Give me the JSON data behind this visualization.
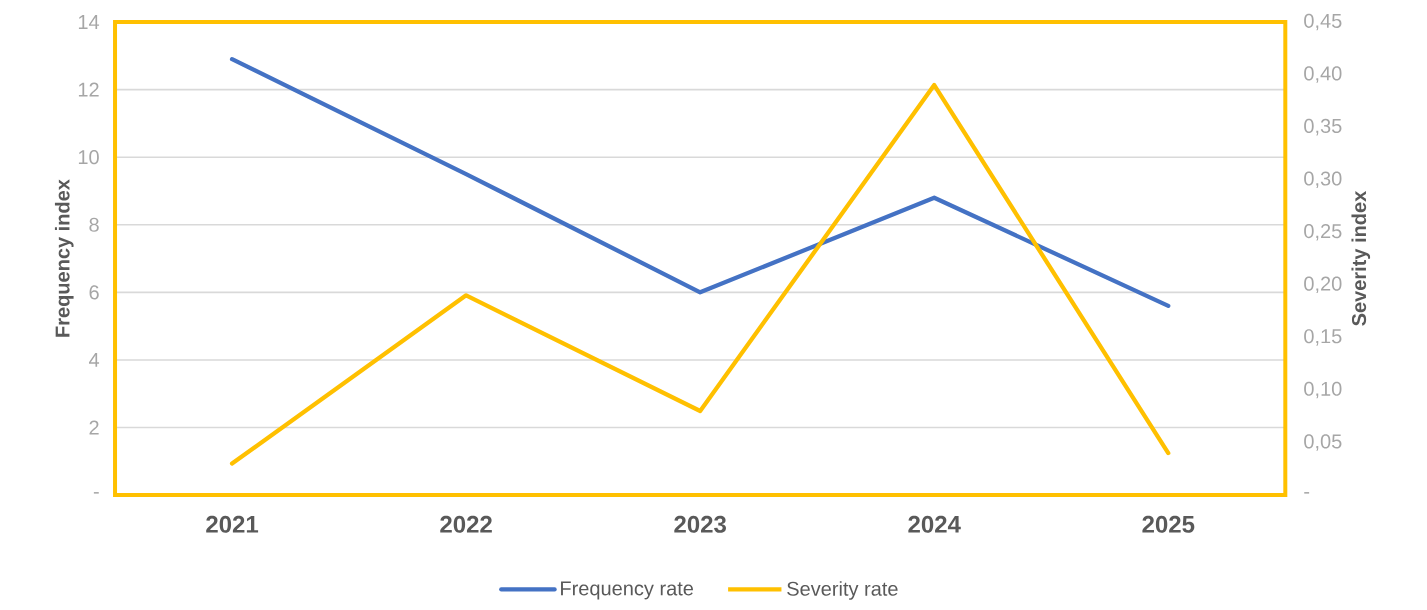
{
  "chart_data": {
    "type": "line",
    "categories": [
      "2021",
      "2022",
      "2023",
      "2024",
      "2025"
    ],
    "series": [
      {
        "name": "Frequency rate",
        "color": "#4472c4",
        "values": [
          12.9,
          9.5,
          6.0,
          8.8,
          5.6
        ]
      },
      {
        "name": "Severity rate",
        "color": "#ffc000",
        "axis": "y2",
        "values": [
          0.03,
          0.19,
          0.08,
          0.39,
          0.04
        ]
      }
    ],
    "ylabel": "Frequency index",
    "y2label": "Severity index",
    "ylim": [
      0,
      14
    ],
    "yticks": [
      {
        "value": 0,
        "label": "-"
      },
      2,
      4,
      6,
      8,
      10,
      12,
      14
    ],
    "y2lim": [
      0,
      0.45
    ],
    "y2ticks": [
      {
        "value": 0,
        "label": "-"
      },
      {
        "value": 0.05,
        "label": "0,05"
      },
      {
        "value": 0.1,
        "label": "0,10"
      },
      {
        "value": 0.15,
        "label": "0,15"
      },
      {
        "value": 0.2,
        "label": "0,20"
      },
      {
        "value": 0.25,
        "label": "0,25"
      },
      {
        "value": 0.3,
        "label": "0,30"
      },
      {
        "value": 0.35,
        "label": "0,35"
      },
      {
        "value": 0.4,
        "label": "0,40"
      },
      {
        "value": 0.45,
        "label": "0,45"
      }
    ],
    "grid": "y",
    "legend": "bottom",
    "marker": "none",
    "line_style": "solid"
  }
}
